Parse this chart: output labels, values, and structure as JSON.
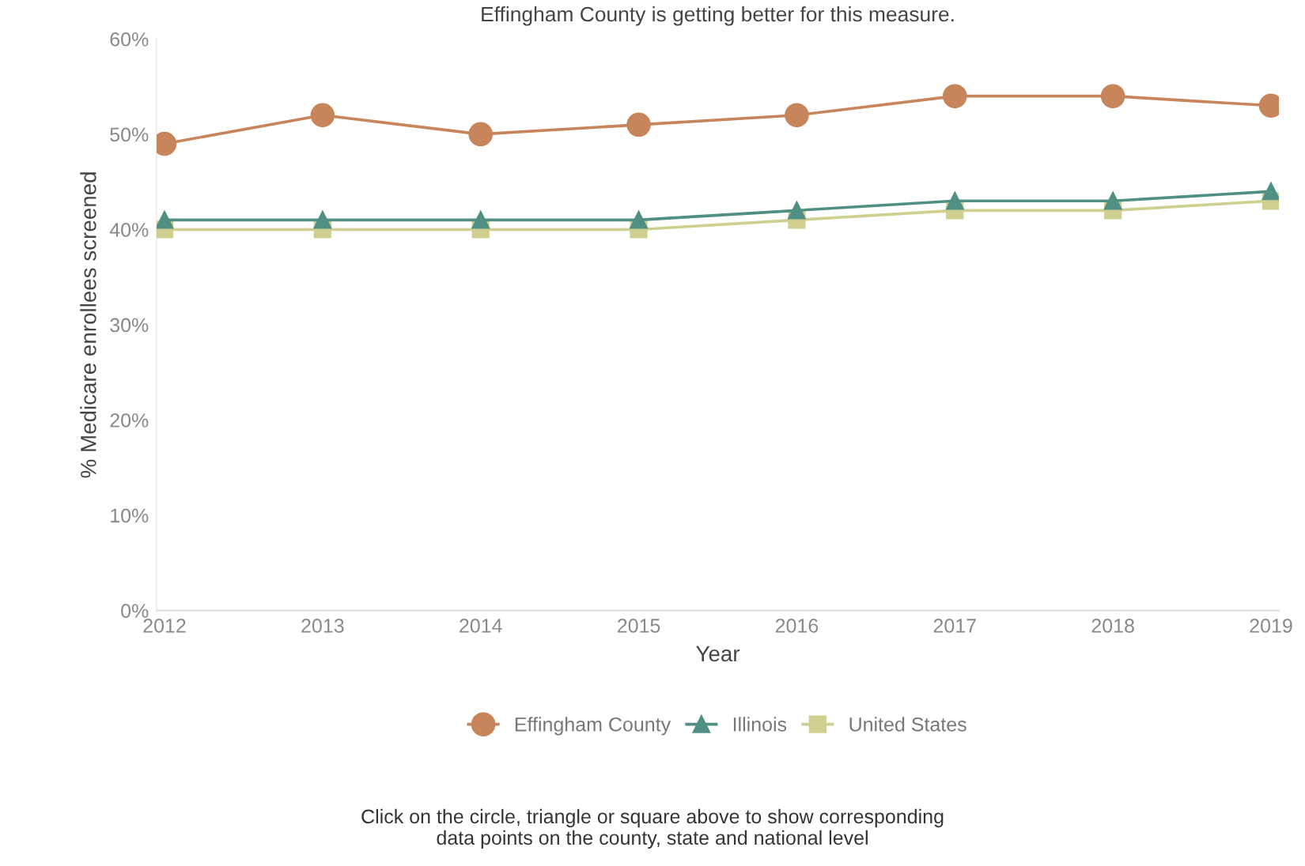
{
  "chart_data": {
    "type": "line",
    "title": "Effingham County is getting better for this measure.",
    "xlabel": "Year",
    "ylabel": "% Medicare enrollees screened",
    "categories": [
      "2012",
      "2013",
      "2014",
      "2015",
      "2016",
      "2017",
      "2018",
      "2019"
    ],
    "series": [
      {
        "name": "Effingham County",
        "color": "#c8845a",
        "marker": "circle",
        "values": [
          49,
          52,
          50,
          51,
          52,
          54,
          54,
          53
        ]
      },
      {
        "name": "Illinois",
        "color": "#4f8f84",
        "marker": "triangle",
        "values": [
          41,
          41,
          41,
          41,
          42,
          43,
          43,
          44
        ]
      },
      {
        "name": "United States",
        "color": "#cfcf8f",
        "marker": "square",
        "values": [
          40,
          40,
          40,
          40,
          41,
          42,
          42,
          43
        ]
      }
    ],
    "ylim": [
      0,
      60
    ],
    "yticks": [
      {
        "value": 0,
        "label": "0%"
      },
      {
        "value": 10,
        "label": "10%"
      },
      {
        "value": 20,
        "label": "20%"
      },
      {
        "value": 30,
        "label": "30%"
      },
      {
        "value": 40,
        "label": "40%"
      },
      {
        "value": 50,
        "label": "50%"
      },
      {
        "value": 60,
        "label": "60%"
      }
    ],
    "grid": false,
    "legend": "bottom",
    "annotations": [
      "Click on the circle, triangle or square above to show corresponding\ndata points on the county, state and national level"
    ]
  }
}
